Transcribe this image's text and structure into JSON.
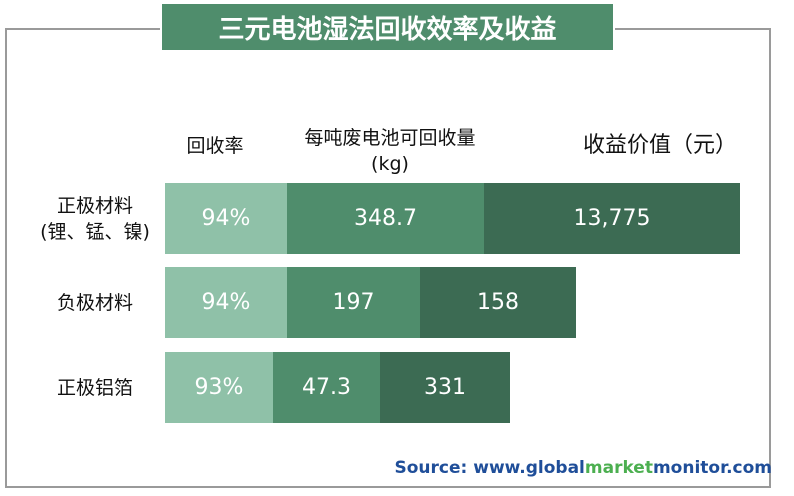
{
  "title": "三元电池湿法回收效率及收益",
  "columns": [
    {
      "lines": [
        "回收率"
      ]
    },
    {
      "lines": [
        "每吨废电池可回收量",
        "(kg)"
      ]
    },
    {
      "lines": [
        "收益价值（元）"
      ]
    }
  ],
  "rows": [
    {
      "label": [
        "正极材料",
        "(锂、锰、镍)"
      ],
      "cells": [
        "94%",
        "348.7",
        "13,775"
      ]
    },
    {
      "label": [
        "负极材料"
      ],
      "cells": [
        "94%",
        "197",
        "158"
      ]
    },
    {
      "label": [
        "正极铝箔"
      ],
      "cells": [
        "93%",
        "47.3",
        "331"
      ]
    }
  ],
  "source": {
    "label": "Source:",
    "parts": [
      "www.global",
      "market",
      "monitor",
      ".com"
    ]
  }
}
